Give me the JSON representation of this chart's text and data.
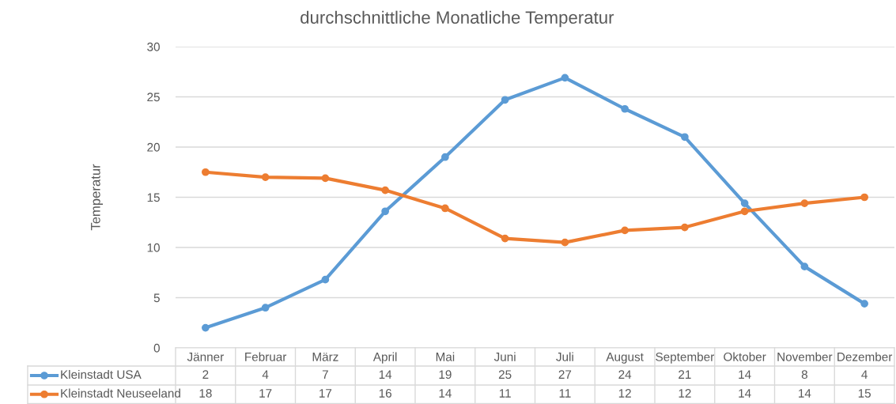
{
  "chart_data": {
    "type": "line",
    "title": "durchschnittliche Monatliche Temperatur",
    "ylabel": "Temperatur",
    "categories": [
      "Jänner",
      "Februar",
      "März",
      "April",
      "Mai",
      "Juni",
      "Juli",
      "August",
      "September",
      "Oktober",
      "November",
      "Dezember"
    ],
    "series": [
      {
        "name": "Kleinstadt USA",
        "color": "#5b9bd5",
        "values": [
          2.0,
          4.0,
          6.8,
          13.6,
          19.0,
          24.7,
          26.9,
          23.8,
          21.0,
          14.4,
          8.1,
          4.4
        ],
        "value_labels": [
          "2",
          "4",
          "7",
          "14",
          "19",
          "25",
          "27",
          "24",
          "21",
          "14",
          "8",
          "4"
        ]
      },
      {
        "name": "Kleinstadt Neuseeland",
        "color": "#ed7d31",
        "values": [
          17.5,
          17.0,
          16.9,
          15.7,
          13.9,
          10.9,
          10.5,
          11.7,
          12.0,
          13.6,
          14.4,
          15.0
        ],
        "value_labels": [
          "18",
          "17",
          "17",
          "16",
          "14",
          "11",
          "11",
          "12",
          "12",
          "14",
          "14",
          "15"
        ]
      }
    ],
    "ylim": [
      0,
      30
    ],
    "yticks": [
      0,
      5,
      10,
      15,
      20,
      25,
      30
    ],
    "grid": "y",
    "legend": "bottom",
    "marker": "circle",
    "line_style": "solid"
  }
}
